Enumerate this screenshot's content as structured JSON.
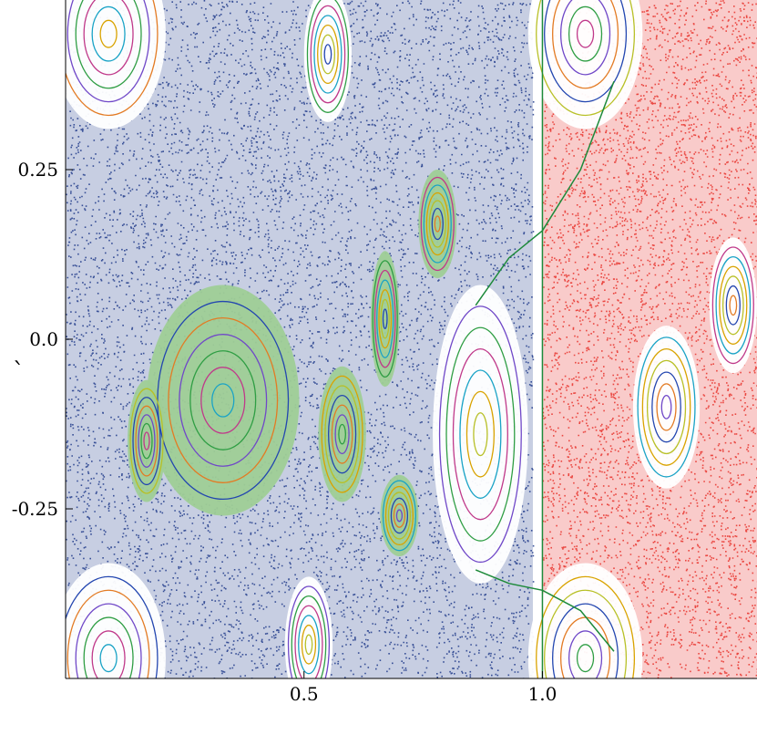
{
  "chart_data": {
    "type": "scatter",
    "title": "",
    "xlabel": "",
    "ylabel": "",
    "ylabel_glyph": "`",
    "xlim": [
      0.0,
      1.45
    ],
    "ylim": [
      -0.5,
      0.5
    ],
    "x_ticks": [
      {
        "value": 0.5,
        "label": "0.5"
      },
      {
        "value": 1.0,
        "label": "1.0"
      }
    ],
    "y_ticks": [
      {
        "value": 0.25,
        "label": "0.25"
      },
      {
        "value": 0.0,
        "label": "0.0"
      },
      {
        "value": -0.25,
        "label": "-0.25"
      }
    ],
    "grid": false,
    "legend": "none",
    "colors": {
      "chaotic_blue": "#1f3a8a",
      "chaotic_red": "#e8312a",
      "green_wash": "#9fce96",
      "separatrix_green": "#1d8a3a",
      "axis": "#000000"
    },
    "regions": [
      {
        "name": "chaotic sea (blue)",
        "x": [
          0.0,
          0.98
        ],
        "y": [
          -0.5,
          0.5
        ],
        "color": "chaotic_blue"
      },
      {
        "name": "chaotic sea (red)",
        "x": [
          1.0,
          1.45
        ],
        "y": [
          -0.5,
          0.5
        ],
        "color": "chaotic_red"
      }
    ],
    "islands": [
      {
        "cx": 0.33,
        "cy": -0.09,
        "rx": 0.16,
        "ry": 0.17,
        "color": "green_wash"
      },
      {
        "cx": 0.17,
        "cy": -0.15,
        "rx": 0.04,
        "ry": 0.09,
        "color": "green_wash"
      },
      {
        "cx": 0.58,
        "cy": -0.14,
        "rx": 0.05,
        "ry": 0.1,
        "color": "green_wash"
      },
      {
        "cx": 0.7,
        "cy": -0.26,
        "rx": 0.04,
        "ry": 0.06,
        "color": "green_wash"
      },
      {
        "cx": 0.78,
        "cy": 0.17,
        "rx": 0.04,
        "ry": 0.08,
        "color": "green_wash"
      },
      {
        "cx": 0.67,
        "cy": 0.03,
        "rx": 0.03,
        "ry": 0.1,
        "color": "green_wash"
      },
      {
        "cx": 0.87,
        "cy": -0.14,
        "rx": 0.1,
        "ry": 0.22,
        "color": "white"
      },
      {
        "cx": 0.09,
        "cy": 0.45,
        "rx": 0.12,
        "ry": 0.14,
        "color": "white"
      },
      {
        "cx": 0.09,
        "cy": -0.47,
        "rx": 0.12,
        "ry": 0.14,
        "color": "white"
      },
      {
        "cx": 1.09,
        "cy": 0.45,
        "rx": 0.12,
        "ry": 0.14,
        "color": "white"
      },
      {
        "cx": 1.09,
        "cy": -0.47,
        "rx": 0.12,
        "ry": 0.14,
        "color": "white"
      },
      {
        "cx": 1.26,
        "cy": -0.1,
        "rx": 0.07,
        "ry": 0.12,
        "color": "white"
      },
      {
        "cx": 1.4,
        "cy": 0.05,
        "rx": 0.05,
        "ry": 0.1,
        "color": "white"
      },
      {
        "cx": 0.55,
        "cy": 0.42,
        "rx": 0.05,
        "ry": 0.1,
        "color": "white"
      },
      {
        "cx": 0.51,
        "cy": -0.45,
        "rx": 0.05,
        "ry": 0.1,
        "color": "white"
      }
    ]
  }
}
